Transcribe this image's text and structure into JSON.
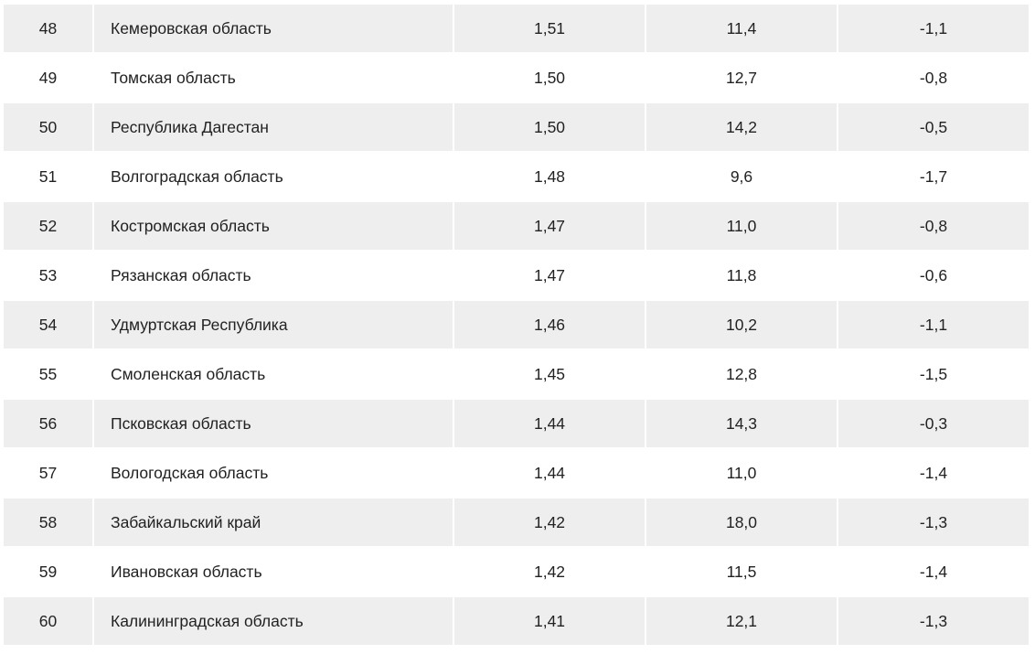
{
  "rows": [
    {
      "rank": "48",
      "region": "Кемеровская область",
      "v1": "1,51",
      "v2": "11,4",
      "v3": "-1,1"
    },
    {
      "rank": "49",
      "region": "Томская область",
      "v1": "1,50",
      "v2": "12,7",
      "v3": "-0,8"
    },
    {
      "rank": "50",
      "region": "Республика Дагестан",
      "v1": "1,50",
      "v2": "14,2",
      "v3": "-0,5"
    },
    {
      "rank": "51",
      "region": "Волгоградская область",
      "v1": "1,48",
      "v2": "9,6",
      "v3": "-1,7"
    },
    {
      "rank": "52",
      "region": "Костромская область",
      "v1": "1,47",
      "v2": "11,0",
      "v3": "-0,8"
    },
    {
      "rank": "53",
      "region": "Рязанская область",
      "v1": "1,47",
      "v2": "11,8",
      "v3": "-0,6"
    },
    {
      "rank": "54",
      "region": "Удмуртская Республика",
      "v1": "1,46",
      "v2": "10,2",
      "v3": "-1,1"
    },
    {
      "rank": "55",
      "region": "Смоленская область",
      "v1": "1,45",
      "v2": "12,8",
      "v3": "-1,5"
    },
    {
      "rank": "56",
      "region": "Псковская область",
      "v1": "1,44",
      "v2": "14,3",
      "v3": "-0,3"
    },
    {
      "rank": "57",
      "region": "Вологодская область",
      "v1": "1,44",
      "v2": "11,0",
      "v3": "-1,4"
    },
    {
      "rank": "58",
      "region": "Забайкальский край",
      "v1": "1,42",
      "v2": "18,0",
      "v3": "-1,3"
    },
    {
      "rank": "59",
      "region": "Ивановская область",
      "v1": "1,42",
      "v2": "11,5",
      "v3": "-1,4"
    },
    {
      "rank": "60",
      "region": "Калининградская область",
      "v1": "1,41",
      "v2": "12,1",
      "v3": "-1,3"
    }
  ],
  "colors": {
    "striped_row": "#eeeeee",
    "plain_row": "#ffffff",
    "text": "#222222"
  }
}
